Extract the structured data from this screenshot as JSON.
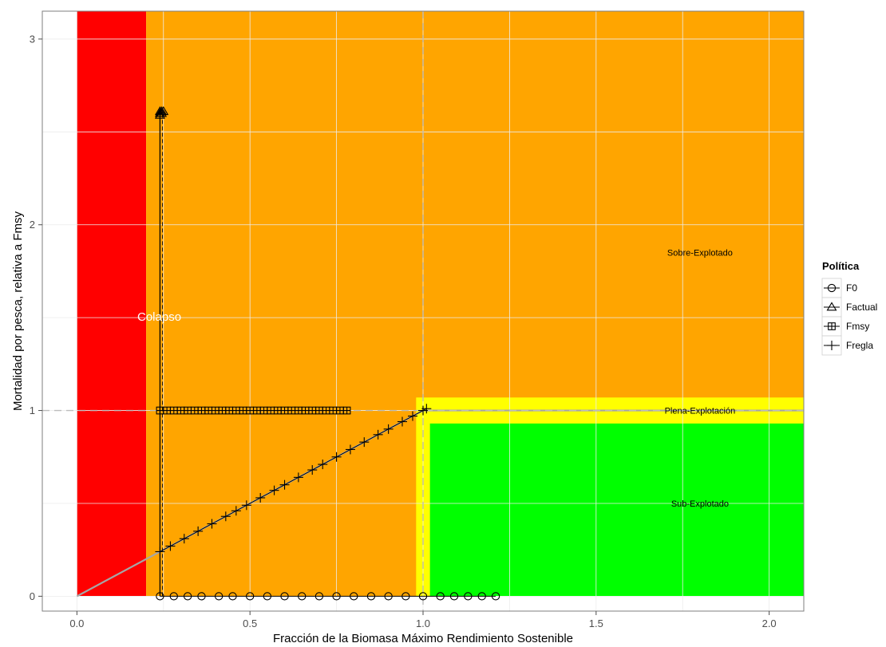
{
  "chart_data": {
    "type": "scatter",
    "xlabel": "Fracción de la Biomasa Máximo Rendimiento Sostenible",
    "ylabel": "Mortalidad por pesca, relativa a Fmsy",
    "xlim": [
      -0.1,
      2.1
    ],
    "ylim": [
      -0.08,
      3.15
    ],
    "x_ticks": [
      0.0,
      0.5,
      1.0,
      1.5,
      2.0
    ],
    "x_tick_labels": [
      "0.0",
      "0.5",
      "1.0",
      "1.5",
      "2.0"
    ],
    "y_ticks": [
      0,
      1,
      2,
      3
    ],
    "y_tick_labels": [
      "0",
      "1",
      "2",
      "3"
    ],
    "grid": true,
    "reference_lines": {
      "x": 1.0,
      "y": 1.0
    },
    "regions": [
      {
        "name": "collapse",
        "label": "Colapso",
        "color": "#ff0000",
        "x": [
          0.0,
          0.2
        ],
        "y": [
          0,
          3.15
        ],
        "label_at": [
          0.25,
          1.5
        ]
      },
      {
        "name": "over",
        "label": "Sobre-Explotado",
        "color": "#ffa500",
        "x": [
          0.2,
          2.1
        ],
        "y": [
          0,
          3.15
        ],
        "label_at": [
          1.8,
          1.85
        ]
      },
      {
        "name": "full",
        "label": "Plena-Explotación",
        "color": "#ffff00",
        "x": [
          0.98,
          2.1
        ],
        "y": [
          0,
          1.07
        ],
        "label_at": [
          1.8,
          1.0
        ]
      },
      {
        "name": "under",
        "label": "Sub-Explotado",
        "color": "#00ff00",
        "x": [
          1.02,
          2.1
        ],
        "y": [
          0,
          0.93
        ],
        "label_at": [
          1.8,
          0.5
        ]
      }
    ],
    "hcr_line": [
      [
        0.0,
        0.0
      ],
      [
        1.0,
        1.0
      ],
      [
        2.1,
        1.0
      ]
    ],
    "legend": {
      "title": "Política",
      "position": "right",
      "items": [
        {
          "name": "F0",
          "shape": "circle"
        },
        {
          "name": "Factual",
          "shape": "triangle"
        },
        {
          "name": "Fmsy",
          "shape": "square-plus"
        },
        {
          "name": "Fregla",
          "shape": "plus"
        }
      ]
    },
    "series": [
      {
        "name": "F0",
        "shape": "circle",
        "x": [
          0.24,
          0.28,
          0.32,
          0.36,
          0.41,
          0.45,
          0.5,
          0.55,
          0.6,
          0.65,
          0.7,
          0.75,
          0.8,
          0.85,
          0.9,
          0.95,
          1.0,
          1.05,
          1.09,
          1.13,
          1.17,
          1.21
        ],
        "y": [
          0,
          0,
          0,
          0,
          0,
          0,
          0,
          0,
          0,
          0,
          0,
          0,
          0,
          0,
          0,
          0,
          0,
          0,
          0,
          0,
          0,
          0
        ]
      },
      {
        "name": "Factual",
        "shape": "triangle",
        "x": [
          0.24,
          0.24,
          0.245,
          0.25,
          0.24,
          0.245
        ],
        "y": [
          2.6,
          2.61,
          2.6,
          2.61,
          2.59,
          2.61
        ]
      },
      {
        "name": "Fmsy",
        "shape": "square-plus",
        "x": [
          0.24,
          0.26,
          0.28,
          0.3,
          0.32,
          0.34,
          0.36,
          0.38,
          0.4,
          0.42,
          0.44,
          0.46,
          0.48,
          0.5,
          0.52,
          0.54,
          0.56,
          0.58,
          0.6,
          0.62,
          0.64,
          0.66,
          0.68,
          0.7,
          0.72,
          0.74,
          0.76,
          0.78
        ],
        "y": [
          1,
          1,
          1,
          1,
          1,
          1,
          1,
          1,
          1,
          1,
          1,
          1,
          1,
          1,
          1,
          1,
          1,
          1,
          1,
          1,
          1,
          1,
          1,
          1,
          1,
          1,
          1,
          1
        ]
      },
      {
        "name": "Fregla",
        "shape": "plus",
        "x": [
          0.24,
          0.27,
          0.31,
          0.35,
          0.39,
          0.43,
          0.46,
          0.49,
          0.53,
          0.57,
          0.6,
          0.64,
          0.68,
          0.71,
          0.75,
          0.79,
          0.83,
          0.87,
          0.9,
          0.94,
          0.97,
          1.0,
          1.01
        ],
        "y": [
          0.24,
          0.27,
          0.31,
          0.35,
          0.39,
          0.43,
          0.46,
          0.49,
          0.53,
          0.57,
          0.6,
          0.64,
          0.68,
          0.71,
          0.75,
          0.79,
          0.83,
          0.87,
          0.9,
          0.94,
          0.97,
          1.0,
          1.01
        ]
      }
    ],
    "vertical_tracks": [
      {
        "x": 0.24,
        "y": [
          0.0,
          2.6
        ]
      }
    ]
  }
}
